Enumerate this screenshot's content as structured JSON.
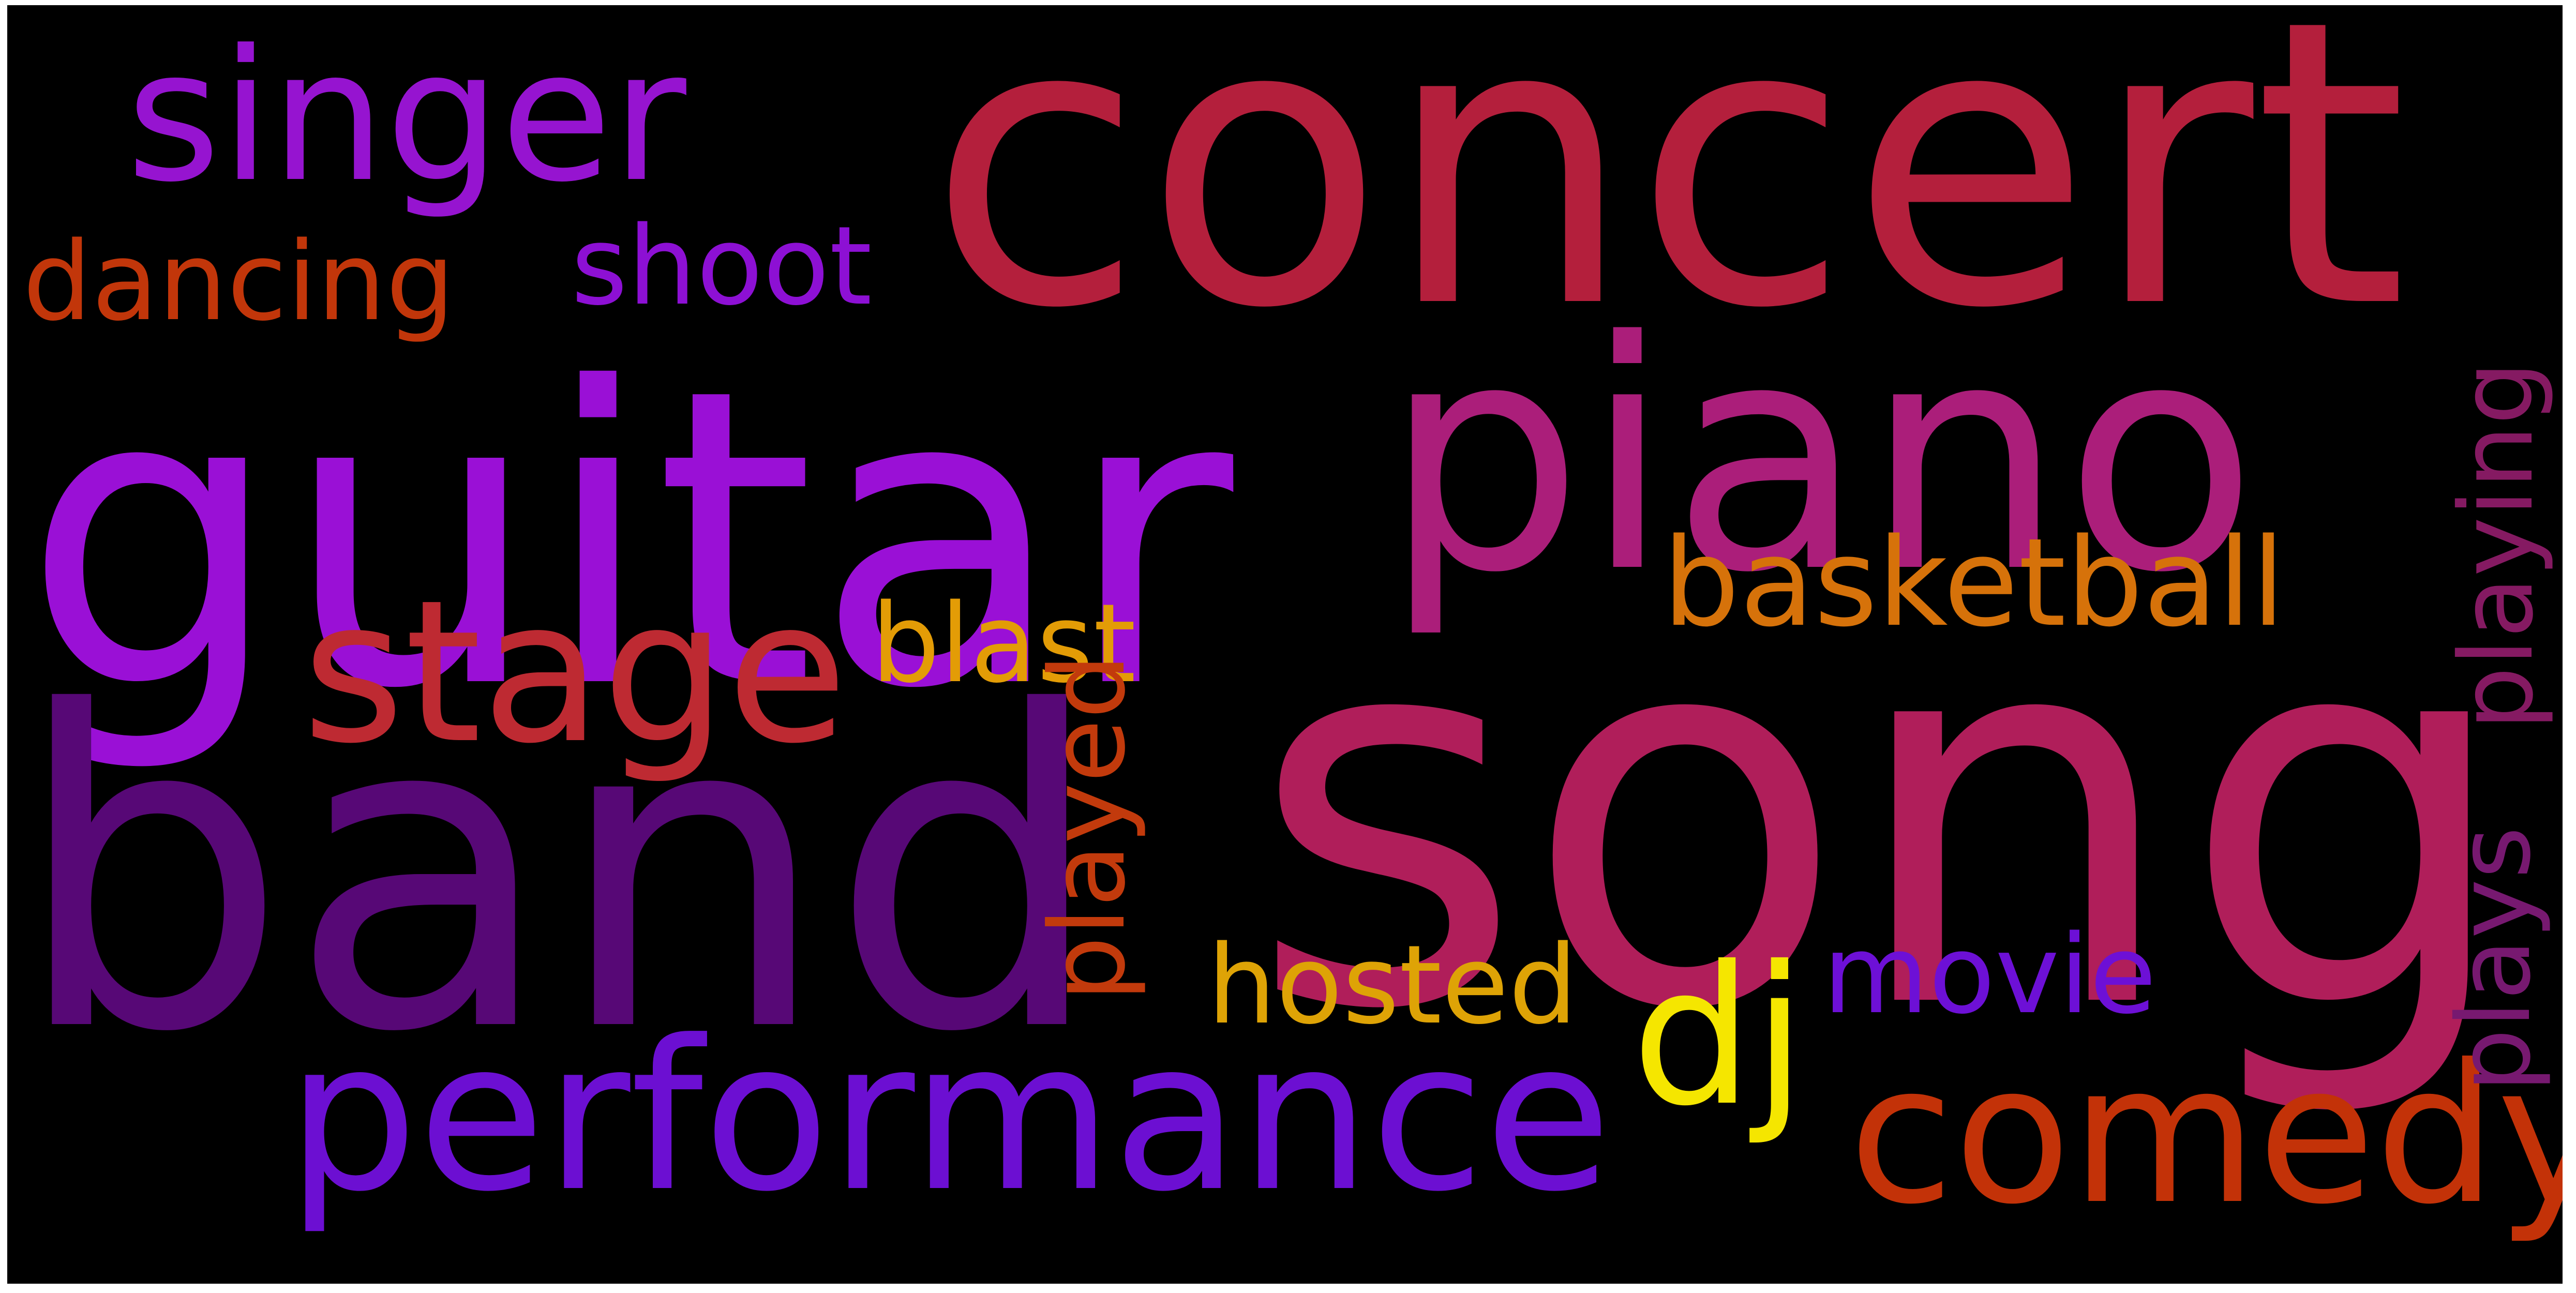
{
  "words": {
    "song": {
      "text": "song",
      "color": "#b01e5a"
    },
    "concert": {
      "text": "concert",
      "color": "#b41f3c"
    },
    "guitar": {
      "text": "guitar",
      "color": "#9a10d6"
    },
    "band": {
      "text": "band",
      "color": "#570876"
    },
    "piano": {
      "text": "piano",
      "color": "#ab1e7a"
    },
    "singer": {
      "text": "singer",
      "color": "#9614d0"
    },
    "performance": {
      "text": "performance",
      "color": "#6c0fd2"
    },
    "stage": {
      "text": "stage",
      "color": "#be2a32"
    },
    "comedy": {
      "text": "comedy",
      "color": "#c33208"
    },
    "dj": {
      "text": "dj",
      "color": "#f5e600"
    },
    "basketball": {
      "text": "basketball",
      "color": "#d6720a"
    },
    "dancing": {
      "text": "dancing",
      "color": "#c2360a"
    },
    "shoot": {
      "text": "shoot",
      "color": "#8d10d4"
    },
    "blast": {
      "text": "blast",
      "color": "#e39c06"
    },
    "hosted": {
      "text": "hosted",
      "color": "#dea306"
    },
    "movie": {
      "text": "movie",
      "color": "#6d10d6"
    },
    "played": {
      "text": "played",
      "color": "#c23a0c"
    },
    "plays": {
      "text": "plays",
      "color": "#771970"
    },
    "playing": {
      "text": "playing",
      "color": "#851a62"
    }
  }
}
